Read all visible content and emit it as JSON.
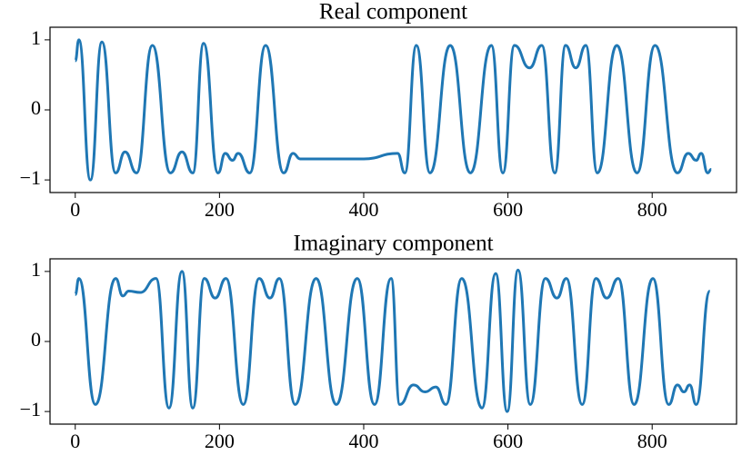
{
  "chart_data": [
    {
      "type": "line",
      "title": "Real component",
      "color": "#1f77b4",
      "x": [
        0,
        5,
        21,
        37,
        56,
        69,
        85,
        107,
        132,
        148,
        163,
        178,
        198,
        208,
        218,
        226,
        242,
        264,
        289,
        302,
        312,
        350,
        400,
        447,
        457,
        473,
        492,
        520,
        548,
        577,
        593,
        609,
        630,
        647,
        665,
        680,
        694,
        708,
        724,
        751,
        779,
        804,
        835,
        850,
        861,
        868,
        877,
        882
      ],
      "values": [
        0.7,
        1.0,
        -1.0,
        0.97,
        -0.9,
        -0.6,
        -0.9,
        0.92,
        -0.9,
        -0.6,
        -0.9,
        0.95,
        -0.9,
        -0.62,
        -0.72,
        -0.62,
        -0.9,
        0.92,
        -0.9,
        -0.62,
        -0.7,
        -0.7,
        -0.7,
        -0.62,
        -0.9,
        0.92,
        -0.9,
        0.92,
        -0.9,
        0.92,
        -0.9,
        0.92,
        0.6,
        0.92,
        -0.9,
        0.92,
        0.6,
        0.92,
        -0.9,
        0.92,
        -0.9,
        0.92,
        -0.9,
        -0.62,
        -0.72,
        -0.62,
        -0.9,
        -0.85
      ],
      "xlim": [
        -35,
        917
      ],
      "ylim": [
        -1.18,
        1.18
      ],
      "xticks": [
        0,
        200,
        400,
        600,
        800
      ],
      "yticks": [
        {
          "value": -1,
          "label": "−1"
        },
        0,
        1
      ]
    },
    {
      "type": "line",
      "title": "Imaginary component",
      "color": "#1f77b4",
      "x": [
        0,
        5,
        28,
        56,
        66,
        74,
        90,
        112,
        130,
        148,
        163,
        179,
        194,
        209,
        233,
        255,
        270,
        283,
        305,
        334,
        362,
        391,
        415,
        438,
        450,
        469,
        485,
        500,
        514,
        536,
        564,
        583,
        599,
        614,
        631,
        652,
        668,
        681,
        703,
        722,
        737,
        753,
        775,
        801,
        823,
        835,
        844,
        852,
        861,
        880
      ],
      "values": [
        0.67,
        0.9,
        -0.9,
        0.9,
        0.65,
        0.72,
        0.7,
        0.9,
        -0.95,
        1.0,
        -0.95,
        0.9,
        0.62,
        0.9,
        -0.9,
        0.9,
        0.62,
        0.9,
        -0.9,
        0.9,
        -0.9,
        0.9,
        -0.9,
        0.9,
        -0.9,
        -0.62,
        -0.72,
        -0.65,
        -0.9,
        0.9,
        -0.95,
        0.97,
        -1.0,
        1.02,
        -0.9,
        0.9,
        0.62,
        0.9,
        -0.9,
        0.9,
        0.62,
        0.9,
        -0.9,
        0.9,
        -0.9,
        -0.62,
        -0.72,
        -0.62,
        -0.9,
        0.72
      ],
      "xlim": [
        -35,
        917
      ],
      "ylim": [
        -1.18,
        1.18
      ],
      "xticks": [
        0,
        200,
        400,
        600,
        800
      ],
      "yticks": [
        {
          "value": -1,
          "label": "−1"
        },
        0,
        1
      ]
    }
  ]
}
